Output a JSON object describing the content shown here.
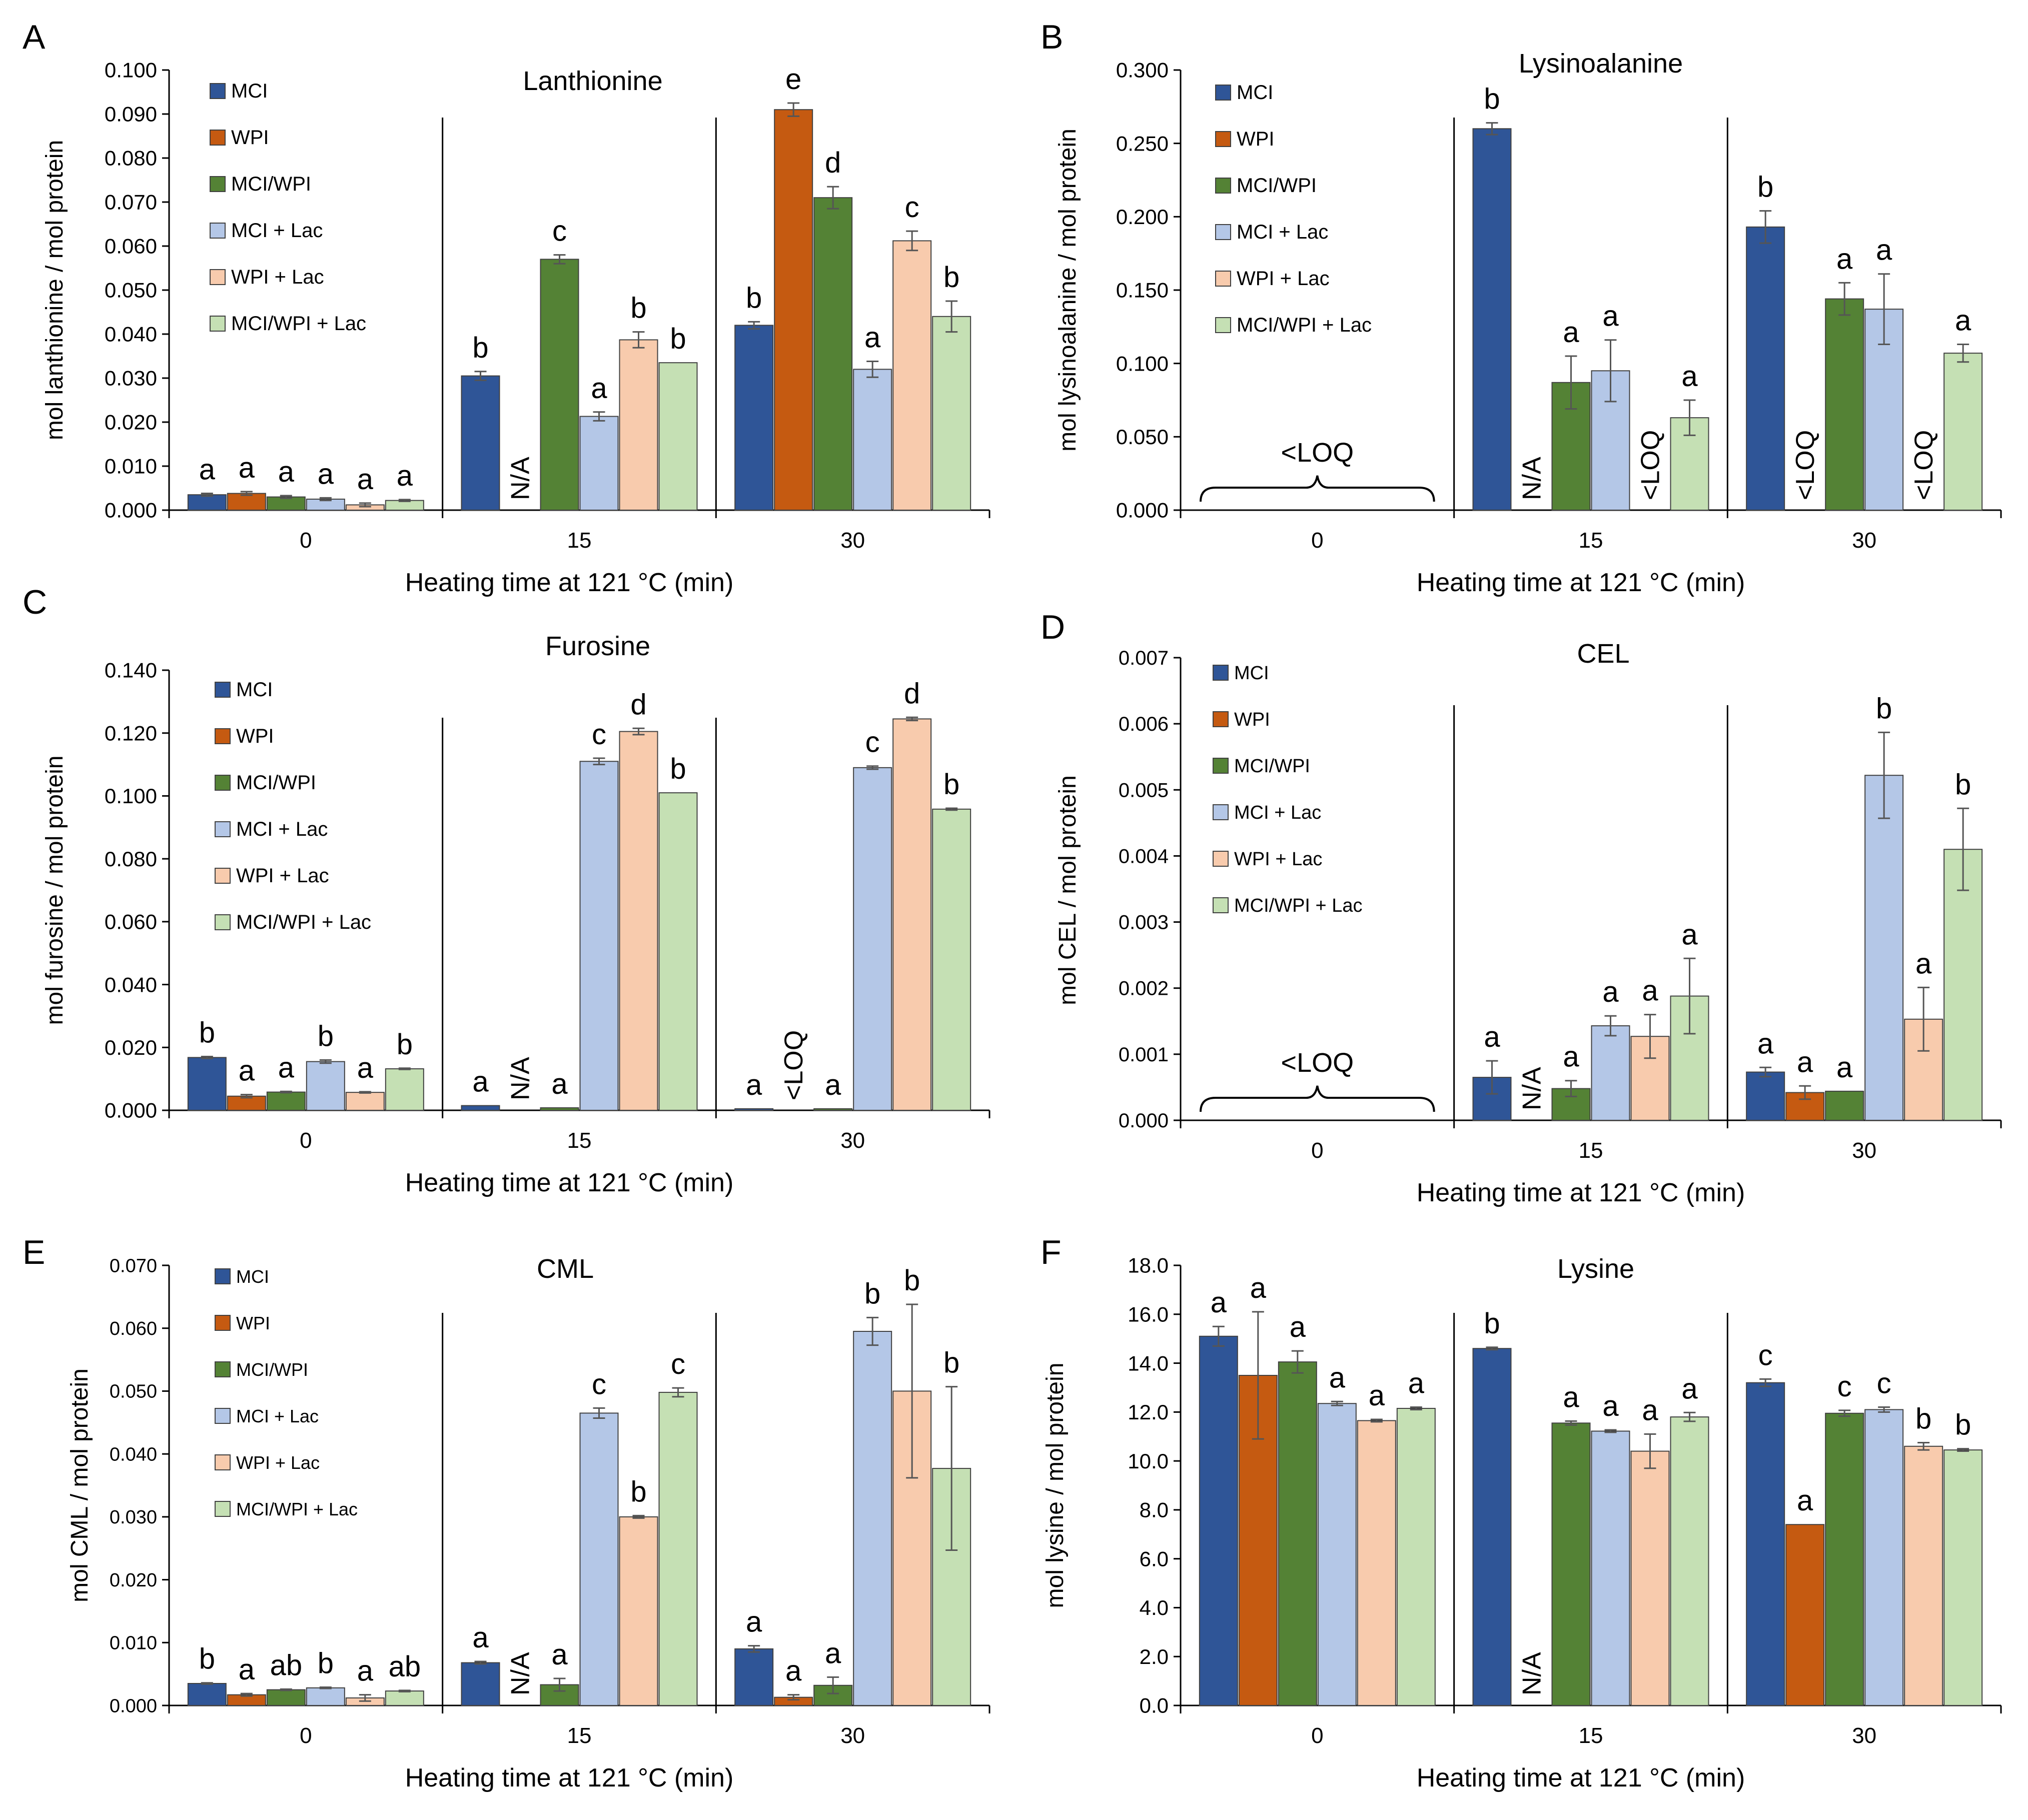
{
  "legend": [
    "MCI",
    "WPI",
    "MCI/WPI",
    "MCI + Lac",
    "WPI + Lac",
    "MCI/WPI + Lac"
  ],
  "colors": [
    "#2F5597",
    "#C55A11",
    "#548235",
    "#B4C7E7",
    "#F8CBAD",
    "#C5E0B4"
  ],
  "xlabel": "Heating time at 121 °C (min)",
  "groups": [
    "0",
    "15",
    "30"
  ],
  "chart_data": [
    {
      "id": "A",
      "type": "bar",
      "title": "Lanthionine",
      "ylabel": "mol lanthionine / mol protein",
      "ylim": [
        0,
        0.1
      ],
      "yticks": [
        "0.000",
        "0.010",
        "0.020",
        "0.030",
        "0.040",
        "0.050",
        "0.060",
        "0.070",
        "0.080",
        "0.090",
        "0.100"
      ],
      "categories": [
        "0",
        "15",
        "30"
      ],
      "series": [
        {
          "name": "MCI",
          "values": [
            0.0035,
            0.0305,
            0.042
          ],
          "errors": [
            0.0003,
            0.001,
            0.0008
          ],
          "letters": [
            "a",
            "b",
            "b"
          ]
        },
        {
          "name": "WPI",
          "values": [
            0.0038,
            null,
            0.091
          ],
          "errors": [
            0.0004,
            null,
            0.0015
          ],
          "letters": [
            "a",
            "N/A",
            "e"
          ]
        },
        {
          "name": "MCI/WPI",
          "values": [
            0.003,
            0.057,
            0.071
          ],
          "errors": [
            0.0003,
            0.001,
            0.0025
          ],
          "letters": [
            "a",
            "c",
            "d"
          ]
        },
        {
          "name": "MCI + Lac",
          "values": [
            0.0025,
            0.0213,
            0.032
          ],
          "errors": [
            0.0003,
            0.001,
            0.0018
          ],
          "letters": [
            "a",
            "a",
            "a"
          ]
        },
        {
          "name": "WPI + Lac",
          "values": [
            0.0012,
            0.0387,
            0.0612
          ],
          "errors": [
            0.0004,
            0.0018,
            0.0022
          ],
          "letters": [
            "a",
            "b",
            "c"
          ]
        },
        {
          "name": "MCI/WPI + Lac",
          "values": [
            0.0022,
            0.0335,
            0.044
          ],
          "errors": [
            0.0002,
            0,
            0.0035
          ],
          "letters": [
            "a",
            "b",
            "b"
          ]
        }
      ],
      "annotations": []
    },
    {
      "id": "B",
      "type": "bar",
      "title": "Lysinoalanine",
      "ylabel": "mol lysinoalanine / mol protein",
      "ylim": [
        0,
        0.3
      ],
      "yticks": [
        "0.000",
        "0.050",
        "0.100",
        "0.150",
        "0.200",
        "0.250",
        "0.300"
      ],
      "categories": [
        "0",
        "15",
        "30"
      ],
      "series": [
        {
          "name": "MCI",
          "values": [
            null,
            0.26,
            0.193
          ],
          "errors": [
            null,
            0.004,
            0.011
          ],
          "letters": [
            "",
            "b",
            "b"
          ]
        },
        {
          "name": "WPI",
          "values": [
            null,
            null,
            null
          ],
          "errors": [
            null,
            null,
            null
          ],
          "letters": [
            "",
            "N/A",
            "<LOQ"
          ]
        },
        {
          "name": "MCI/WPI",
          "values": [
            null,
            0.087,
            0.144
          ],
          "errors": [
            null,
            0.018,
            0.011
          ],
          "letters": [
            "",
            "a",
            "a"
          ]
        },
        {
          "name": "MCI + Lac",
          "values": [
            null,
            0.095,
            0.137
          ],
          "errors": [
            null,
            0.021,
            0.024
          ],
          "letters": [
            "",
            "a",
            "a"
          ]
        },
        {
          "name": "WPI + Lac",
          "values": [
            null,
            null,
            null
          ],
          "errors": [
            null,
            null,
            null
          ],
          "letters": [
            "",
            "<LOQ",
            "<LOQ"
          ]
        },
        {
          "name": "MCI/WPI + Lac",
          "values": [
            null,
            0.063,
            0.107
          ],
          "errors": [
            null,
            0.012,
            0.006
          ],
          "letters": [
            "",
            "a",
            "a"
          ]
        }
      ],
      "annotations": [
        {
          "group": "0",
          "text": "<LOQ"
        }
      ]
    },
    {
      "id": "C",
      "type": "bar",
      "title": "Furosine",
      "ylabel": "mol furosine / mol protein",
      "ylim": [
        0,
        0.14
      ],
      "yticks": [
        "0.000",
        "0.020",
        "0.040",
        "0.060",
        "0.080",
        "0.100",
        "0.120",
        "0.140"
      ],
      "categories": [
        "0",
        "15",
        "30"
      ],
      "series": [
        {
          "name": "MCI",
          "values": [
            0.0168,
            0.0015,
            0.0005
          ],
          "errors": [
            0.0003,
            0,
            0
          ],
          "letters": [
            "b",
            "a",
            "a"
          ]
        },
        {
          "name": "WPI",
          "values": [
            0.0045,
            null,
            null
          ],
          "errors": [
            0.0005,
            null,
            null
          ],
          "letters": [
            "a",
            "N/A",
            "<LOQ"
          ]
        },
        {
          "name": "MCI/WPI",
          "values": [
            0.0058,
            0.0008,
            0.0005
          ],
          "errors": [
            0.0002,
            0,
            0
          ],
          "letters": [
            "a",
            "a",
            "a"
          ]
        },
        {
          "name": "MCI + Lac",
          "values": [
            0.0155,
            0.111,
            0.109
          ],
          "errors": [
            0.0005,
            0.001,
            0.0005
          ],
          "letters": [
            "b",
            "c",
            "c"
          ]
        },
        {
          "name": "WPI + Lac",
          "values": [
            0.0057,
            0.1205,
            0.1245
          ],
          "errors": [
            0.0002,
            0.001,
            0.0005
          ],
          "letters": [
            "a",
            "d",
            "d"
          ]
        },
        {
          "name": "MCI/WPI + Lac",
          "values": [
            0.0132,
            0.101,
            0.0958
          ],
          "errors": [
            0.0002,
            0,
            0.0003
          ],
          "letters": [
            "b",
            "b",
            "b"
          ]
        }
      ],
      "annotations": []
    },
    {
      "id": "D",
      "type": "bar",
      "title": "CEL",
      "ylabel": "mol CEL / mol protein",
      "ylim": [
        0,
        0.007
      ],
      "yticks": [
        "0.000",
        "0.001",
        "0.002",
        "0.003",
        "0.004",
        "0.005",
        "0.006",
        "0.007"
      ],
      "categories": [
        "0",
        "15",
        "30"
      ],
      "series": [
        {
          "name": "MCI",
          "values": [
            null,
            0.00065,
            0.00073
          ],
          "errors": [
            null,
            0.00025,
            7e-05
          ],
          "letters": [
            "",
            "a",
            "a"
          ]
        },
        {
          "name": "WPI",
          "values": [
            null,
            null,
            0.00042
          ],
          "errors": [
            null,
            null,
            0.0001
          ],
          "letters": [
            "",
            "N/A",
            "a"
          ]
        },
        {
          "name": "MCI/WPI",
          "values": [
            null,
            0.00048,
            0.00044
          ],
          "errors": [
            null,
            0.00012,
            0
          ],
          "letters": [
            "",
            "a",
            "a"
          ]
        },
        {
          "name": "MCI + Lac",
          "values": [
            null,
            0.00143,
            0.00522
          ],
          "errors": [
            null,
            0.00015,
            0.00065
          ],
          "letters": [
            "",
            "a",
            "b"
          ]
        },
        {
          "name": "WPI + Lac",
          "values": [
            null,
            0.00127,
            0.00153
          ],
          "errors": [
            null,
            0.00033,
            0.00048
          ],
          "letters": [
            "",
            "a",
            "a"
          ]
        },
        {
          "name": "MCI/WPI + Lac",
          "values": [
            null,
            0.00188,
            0.0041
          ],
          "errors": [
            null,
            0.00057,
            0.00062
          ],
          "letters": [
            "",
            "a",
            "b"
          ]
        }
      ],
      "annotations": [
        {
          "group": "0",
          "text": "<LOQ"
        }
      ]
    },
    {
      "id": "E",
      "type": "bar",
      "title": "CML",
      "ylabel": "mol CML / mol protein",
      "ylim": [
        0,
        0.07
      ],
      "yticks": [
        "0.000",
        "0.010",
        "0.020",
        "0.030",
        "0.040",
        "0.050",
        "0.060",
        "0.070"
      ],
      "categories": [
        "0",
        "15",
        "30"
      ],
      "series": [
        {
          "name": "MCI",
          "values": [
            0.0035,
            0.0068,
            0.009
          ],
          "errors": [
            0.0001,
            0.0002,
            0.0005
          ],
          "letters": [
            "b",
            "a",
            "a"
          ]
        },
        {
          "name": "WPI",
          "values": [
            0.0017,
            null,
            0.0013
          ],
          "errors": [
            0.0002,
            null,
            0.0004
          ],
          "letters": [
            "a",
            "N/A",
            "a"
          ]
        },
        {
          "name": "MCI/WPI",
          "values": [
            0.0025,
            0.0033,
            0.0032
          ],
          "errors": [
            0.0001,
            0.001,
            0.0013
          ],
          "letters": [
            "ab",
            "a",
            "a"
          ]
        },
        {
          "name": "MCI + Lac",
          "values": [
            0.0028,
            0.0465,
            0.0595
          ],
          "errors": [
            0.0001,
            0.0008,
            0.0022
          ],
          "letters": [
            "b",
            "c",
            "b"
          ]
        },
        {
          "name": "WPI + Lac",
          "values": [
            0.0012,
            0.03,
            0.05
          ],
          "errors": [
            0.0005,
            0.0002,
            0.0138
          ],
          "letters": [
            "a",
            "b",
            "b"
          ]
        },
        {
          "name": "MCI/WPI + Lac",
          "values": [
            0.0023,
            0.0498,
            0.0377
          ],
          "errors": [
            0.0001,
            0.0007,
            0.013
          ],
          "letters": [
            "ab",
            "c",
            "b"
          ]
        }
      ],
      "annotations": []
    },
    {
      "id": "F",
      "type": "bar",
      "title": "Lysine",
      "ylabel": "mol lysine / mol protein",
      "ylim": [
        0,
        18
      ],
      "yticks": [
        "0.0",
        "2.0",
        "4.0",
        "6.0",
        "8.0",
        "10.0",
        "12.0",
        "14.0",
        "16.0",
        "18.0"
      ],
      "categories": [
        "0",
        "15",
        "30"
      ],
      "series": [
        {
          "name": "MCI",
          "values": [
            15.1,
            14.6,
            13.2
          ],
          "errors": [
            0.4,
            0.05,
            0.15
          ],
          "letters": [
            "a",
            "b",
            "c"
          ]
        },
        {
          "name": "WPI",
          "values": [
            13.5,
            null,
            7.4
          ],
          "errors": [
            2.6,
            null,
            0
          ],
          "letters": [
            "a",
            "N/A",
            "a"
          ]
        },
        {
          "name": "MCI/WPI",
          "values": [
            14.05,
            11.55,
            11.95
          ],
          "errors": [
            0.45,
            0.08,
            0.12
          ],
          "letters": [
            "a",
            "a",
            "c"
          ]
        },
        {
          "name": "MCI + Lac",
          "values": [
            12.35,
            11.22,
            12.1
          ],
          "errors": [
            0.08,
            0.05,
            0.1
          ],
          "letters": [
            "a",
            "a",
            "c"
          ]
        },
        {
          "name": "WPI + Lac",
          "values": [
            11.65,
            10.4,
            10.6
          ],
          "errors": [
            0.05,
            0.7,
            0.15
          ],
          "letters": [
            "a",
            "a",
            "b"
          ]
        },
        {
          "name": "MCI/WPI + Lac",
          "values": [
            12.15,
            11.8,
            10.45
          ],
          "errors": [
            0.05,
            0.18,
            0.05
          ],
          "letters": [
            "a",
            "a",
            "b"
          ]
        }
      ],
      "annotations": []
    }
  ]
}
